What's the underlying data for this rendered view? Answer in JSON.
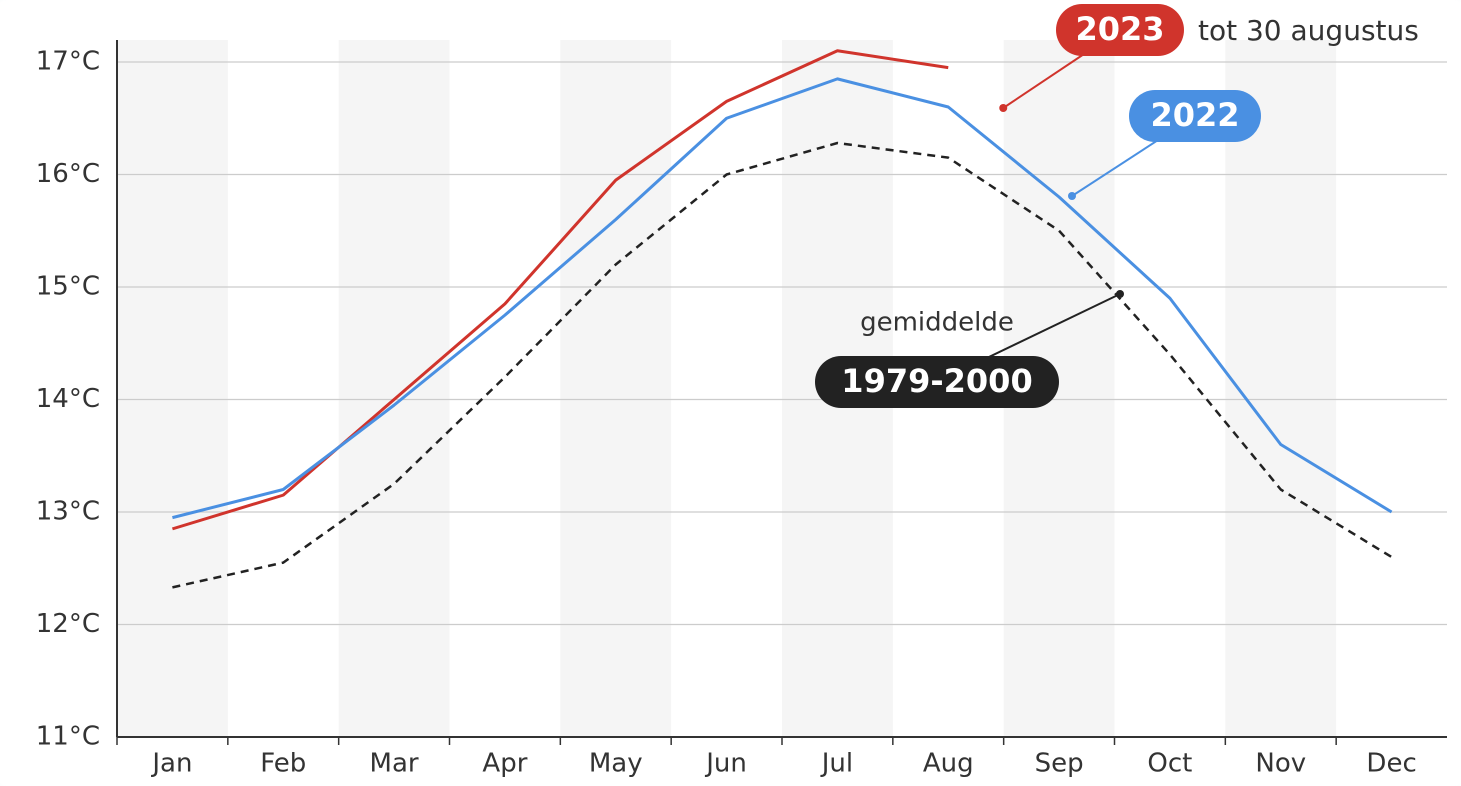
{
  "chart_data": {
    "type": "line",
    "categories": [
      "Jan",
      "Feb",
      "Mar",
      "Apr",
      "May",
      "Jun",
      "Jul",
      "Aug",
      "Sep",
      "Oct",
      "Nov",
      "Dec"
    ],
    "series": [
      {
        "name": "2023",
        "color": "#d0342c",
        "values": [
          12.85,
          13.15,
          14.0,
          14.85,
          15.95,
          16.65,
          17.1,
          16.95,
          null,
          null,
          null,
          null
        ]
      },
      {
        "name": "2022",
        "color": "#4a90e2",
        "values": [
          12.95,
          13.2,
          13.95,
          14.75,
          15.6,
          16.5,
          16.85,
          16.6,
          15.8,
          14.9,
          13.6,
          13.0
        ]
      },
      {
        "name": "1979-2000",
        "color": "#222222",
        "dashed": true,
        "values": [
          12.33,
          12.55,
          13.25,
          14.2,
          15.2,
          16.0,
          16.28,
          16.15,
          15.5,
          14.4,
          13.2,
          12.6
        ]
      }
    ],
    "annotations": [
      "tot 30 augustus",
      "gemiddelde"
    ],
    "ylim": [
      11,
      17.1
    ],
    "yticks": [
      {
        "value": 11,
        "label": "11°C"
      },
      {
        "value": 12,
        "label": "12°C"
      },
      {
        "value": 13,
        "label": "13°C"
      },
      {
        "value": 14,
        "label": "14°C"
      },
      {
        "value": 15,
        "label": "15°C"
      },
      {
        "value": 16,
        "label": "16°C"
      },
      {
        "value": 17,
        "label": "17°C"
      }
    ],
    "grid": true
  }
}
